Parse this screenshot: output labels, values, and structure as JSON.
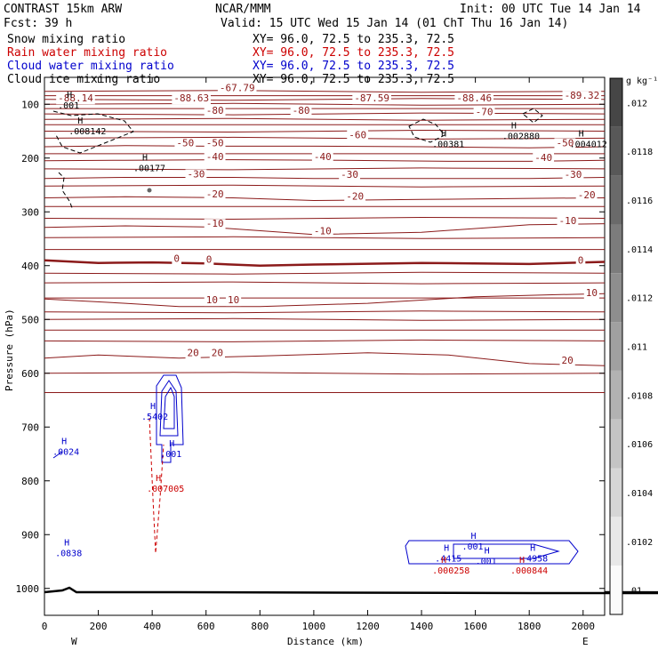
{
  "header": {
    "model": "CONTRAST 15km ARW",
    "org": "NCAR/MMM",
    "init": "Init: 00 UTC Tue 14 Jan 14",
    "fcst_label": "Fcst:",
    "fcst_value": "39 h",
    "valid": "Valid: 15 UTC Wed 15 Jan 14 (01 ChT Thu 16 Jan 14)"
  },
  "fields": [
    {
      "name": "Snow mixing ratio",
      "xy": "XY=  96.0, 72.5 to 235.3, 72.5",
      "color": "#000000"
    },
    {
      "name": "Rain water mixing ratio",
      "xy": "XY=  96.0, 72.5 to 235.3, 72.5",
      "color": "#cc0000"
    },
    {
      "name": "Cloud water mixing ratio",
      "xy": "XY=  96.0, 72.5 to 235.3, 72.5",
      "color": "#0000cc"
    },
    {
      "name": "Cloud ice mixing ratio",
      "xy": "XY=  96.0, 72.5 to 235.3, 72.5",
      "color": "#000000"
    }
  ],
  "colors": {
    "temperature": "#8b1a1a",
    "rain": "#cc0000",
    "cloud_water": "#0000cc",
    "snow": "#000000"
  },
  "chart_data": {
    "type": "line",
    "xlabel": "Distance (km)",
    "ylabel": "Pressure (hPa)",
    "xlim": [
      0,
      2080
    ],
    "ylim": [
      1050,
      50
    ],
    "x_ticks": [
      0,
      200,
      400,
      600,
      800,
      1000,
      1200,
      1400,
      1600,
      1800,
      2000
    ],
    "y_ticks": [
      100,
      200,
      300,
      400,
      500,
      600,
      700,
      800,
      900,
      1000
    ],
    "x_end_labels": {
      "left": "W",
      "right": "E"
    },
    "temperature_isotherms": [
      {
        "label": "-50",
        "points": [
          [
            0,
            179
          ],
          [
            300,
            177
          ],
          [
            600,
            178
          ],
          [
            1000,
            178
          ],
          [
            1400,
            179
          ],
          [
            1800,
            181
          ],
          [
            2080,
            179
          ]
        ]
      },
      {
        "label": "-40",
        "points": [
          [
            0,
            205
          ],
          [
            300,
            204
          ],
          [
            700,
            203
          ],
          [
            1100,
            204
          ],
          [
            1500,
            206
          ],
          [
            1800,
            206
          ],
          [
            2080,
            204
          ]
        ]
      },
      {
        "label": "-30",
        "points": [
          [
            0,
            238
          ],
          [
            300,
            236
          ],
          [
            700,
            236
          ],
          [
            1000,
            238
          ],
          [
            1400,
            238
          ],
          [
            1800,
            238
          ],
          [
            2080,
            236
          ]
        ]
      },
      {
        "label": "-20",
        "points": [
          [
            0,
            274
          ],
          [
            300,
            272
          ],
          [
            700,
            274
          ],
          [
            1000,
            279
          ],
          [
            1400,
            277
          ],
          [
            1800,
            275
          ],
          [
            2080,
            274
          ]
        ]
      },
      {
        "label": "-10",
        "points": [
          [
            0,
            329
          ],
          [
            300,
            326
          ],
          [
            600,
            328
          ],
          [
            1000,
            342
          ],
          [
            1400,
            338
          ],
          [
            1800,
            324
          ],
          [
            2080,
            322
          ]
        ]
      },
      {
        "label": "0",
        "points": [
          [
            0,
            390
          ],
          [
            200,
            395
          ],
          [
            400,
            394
          ],
          [
            600,
            396
          ],
          [
            800,
            400
          ],
          [
            1000,
            398
          ],
          [
            1400,
            395
          ],
          [
            1800,
            397
          ],
          [
            2080,
            393
          ]
        ]
      },
      {
        "label": "10",
        "points": [
          [
            0,
            462
          ],
          [
            300,
            470
          ],
          [
            500,
            476
          ],
          [
            800,
            476
          ],
          [
            1200,
            470
          ],
          [
            1600,
            458
          ],
          [
            1900,
            454
          ],
          [
            2080,
            452
          ]
        ]
      },
      {
        "label": "20",
        "points": [
          [
            0,
            572
          ],
          [
            200,
            566
          ],
          [
            500,
            572
          ],
          [
            800,
            568
          ],
          [
            1200,
            562
          ],
          [
            1500,
            566
          ],
          [
            1800,
            582
          ],
          [
            2080,
            586
          ]
        ]
      }
    ],
    "extra_levels": [
      76,
      84,
      91,
      100,
      108,
      118,
      128,
      138,
      150,
      163,
      192,
      220,
      252,
      290,
      312,
      348,
      370,
      414,
      432,
      460,
      486,
      500,
      520,
      540,
      600,
      636
    ],
    "temperature_labels": [
      {
        "text": "-67.79",
        "x": 650,
        "p": 76
      },
      {
        "text": "-88.14",
        "x": 50,
        "p": 95
      },
      {
        "text": "-88.63",
        "x": 480,
        "p": 95
      },
      {
        "text": "-87.59",
        "x": 1150,
        "p": 95
      },
      {
        "text": "-88.46",
        "x": 1530,
        "p": 95
      },
      {
        "text": "-89.32",
        "x": 1930,
        "p": 90
      },
      {
        "text": "-80",
        "x": 600,
        "p": 118
      },
      {
        "text": "-80",
        "x": 920,
        "p": 118
      },
      {
        "text": "-70",
        "x": 1600,
        "p": 120
      },
      {
        "text": "-60",
        "x": 1130,
        "p": 163
      },
      {
        "text": "-50",
        "x": 490,
        "p": 178
      },
      {
        "text": "-50",
        "x": 600,
        "p": 178
      },
      {
        "text": "-50",
        "x": 1900,
        "p": 178
      },
      {
        "text": "-40",
        "x": 600,
        "p": 204
      },
      {
        "text": "-40",
        "x": 1000,
        "p": 204
      },
      {
        "text": "-40",
        "x": 1820,
        "p": 205
      },
      {
        "text": "-30",
        "x": 530,
        "p": 236
      },
      {
        "text": "-30",
        "x": 1100,
        "p": 237
      },
      {
        "text": "-30",
        "x": 1930,
        "p": 237
      },
      {
        "text": "-20",
        "x": 600,
        "p": 273
      },
      {
        "text": "-20",
        "x": 1120,
        "p": 277
      },
      {
        "text": "-20",
        "x": 1980,
        "p": 275
      },
      {
        "text": "-10",
        "x": 600,
        "p": 328
      },
      {
        "text": "-10",
        "x": 1000,
        "p": 342
      },
      {
        "text": "-10",
        "x": 1910,
        "p": 323
      },
      {
        "text": "0",
        "x": 480,
        "p": 393
      },
      {
        "text": "0",
        "x": 600,
        "p": 395
      },
      {
        "text": "0",
        "x": 1980,
        "p": 396
      },
      {
        "text": "10",
        "x": 600,
        "p": 470
      },
      {
        "text": "10",
        "x": 680,
        "p": 470
      },
      {
        "text": "10",
        "x": 2010,
        "p": 457
      },
      {
        "text": "20",
        "x": 530,
        "p": 568
      },
      {
        "text": "20",
        "x": 620,
        "p": 568
      },
      {
        "text": "20",
        "x": 1920,
        "p": 582
      }
    ],
    "maxima": [
      {
        "series": "Snow mixing ratio",
        "value": ".001",
        "x": 50,
        "p": 108
      },
      {
        "series": "Snow mixing ratio",
        "value": ".008142",
        "x": 90,
        "p": 156
      },
      {
        "series": "Snow mixing ratio",
        "value": ".00177",
        "x": 330,
        "p": 224
      },
      {
        "series": "Snow mixing ratio",
        "value": ".00381",
        "x": 1440,
        "p": 180
      },
      {
        "series": "Snow mixing ratio",
        "value": ".002880",
        "x": 1700,
        "p": 165
      },
      {
        "series": "Snow mixing ratio",
        "value": ".004012",
        "x": 1950,
        "p": 180
      },
      {
        "series": "Cloud water mixing ratio",
        "value": ".5402",
        "x": 360,
        "p": 686
      },
      {
        "series": "Cloud water mixing ratio",
        "value": ".001",
        "x": 430,
        "p": 756
      },
      {
        "series": "Cloud water mixing ratio",
        "value": ".0024",
        "x": 30,
        "p": 752
      },
      {
        "series": "Cloud water mixing ratio",
        "value": ".0838",
        "x": 40,
        "p": 940
      },
      {
        "series": "Cloud water mixing ratio",
        "value": ".001",
        "x": 1550,
        "p": 928
      },
      {
        "series": "Cloud water mixing ratio",
        "value": ".001",
        "x": 1600,
        "p": 955
      },
      {
        "series": "Cloud water mixing ratio",
        "value": ".4415",
        "x": 1450,
        "p": 950
      },
      {
        "series": "Cloud water mixing ratio",
        "value": ".4958",
        "x": 1770,
        "p": 950
      },
      {
        "series": "Rain water mixing ratio",
        "value": ".007005",
        "x": 380,
        "p": 820
      },
      {
        "series": "Rain water mixing ratio",
        "value": ".000258",
        "x": 1440,
        "p": 972
      },
      {
        "series": "Rain water mixing ratio",
        "value": ".000844",
        "x": 1730,
        "p": 972
      }
    ],
    "colorbar": {
      "unit": "g kg⁻¹",
      "labels": [
        ".012",
        ".0118",
        ".0116",
        ".0114",
        ".0112",
        ".011",
        ".0108",
        ".0106",
        ".0104",
        ".0102",
        ".01"
      ]
    }
  }
}
